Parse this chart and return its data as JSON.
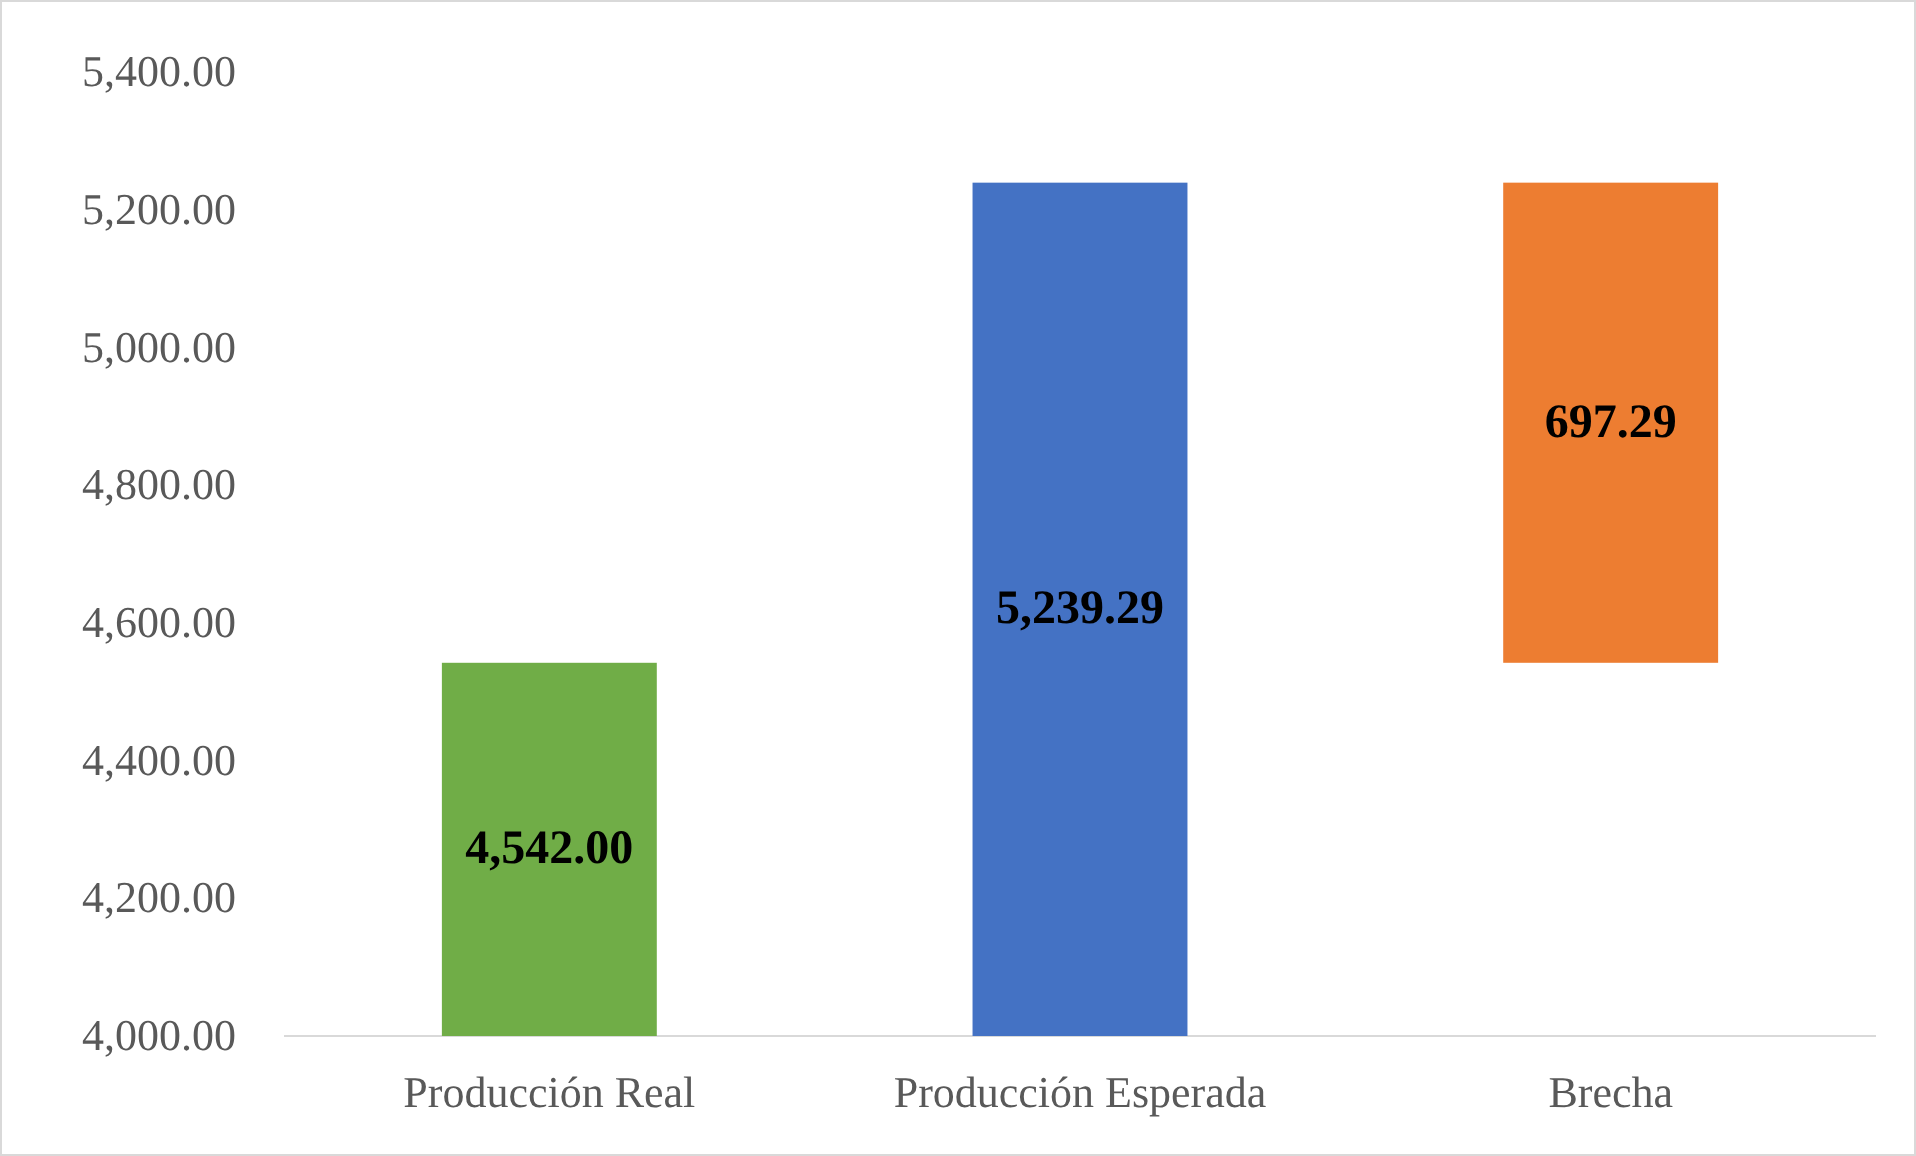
{
  "chart_data": {
    "type": "bar",
    "categories": [
      "Producción Real",
      "Producción Esperada",
      "Brecha"
    ],
    "values": [
      4542.0,
      5239.29,
      697.29
    ],
    "base": [
      null,
      null,
      4542.0
    ],
    "colors": [
      "#70ad47",
      "#4472c4",
      "#ed7d31"
    ],
    "value_labels": [
      "4,542.00",
      "5,239.29",
      "697.29"
    ],
    "ylim": [
      4000,
      5400
    ],
    "yticks": [
      {
        "value": 4000,
        "label": "4,000.00"
      },
      {
        "value": 4200,
        "label": "4,200.00"
      },
      {
        "value": 4400,
        "label": "4,400.00"
      },
      {
        "value": 4600,
        "label": "4,600.00"
      },
      {
        "value": 4800,
        "label": "4,800.00"
      },
      {
        "value": 5000,
        "label": "5,000.00"
      },
      {
        "value": 5200,
        "label": "5,200.00"
      },
      {
        "value": 5400,
        "label": "5,400.00"
      }
    ],
    "grid": false
  }
}
